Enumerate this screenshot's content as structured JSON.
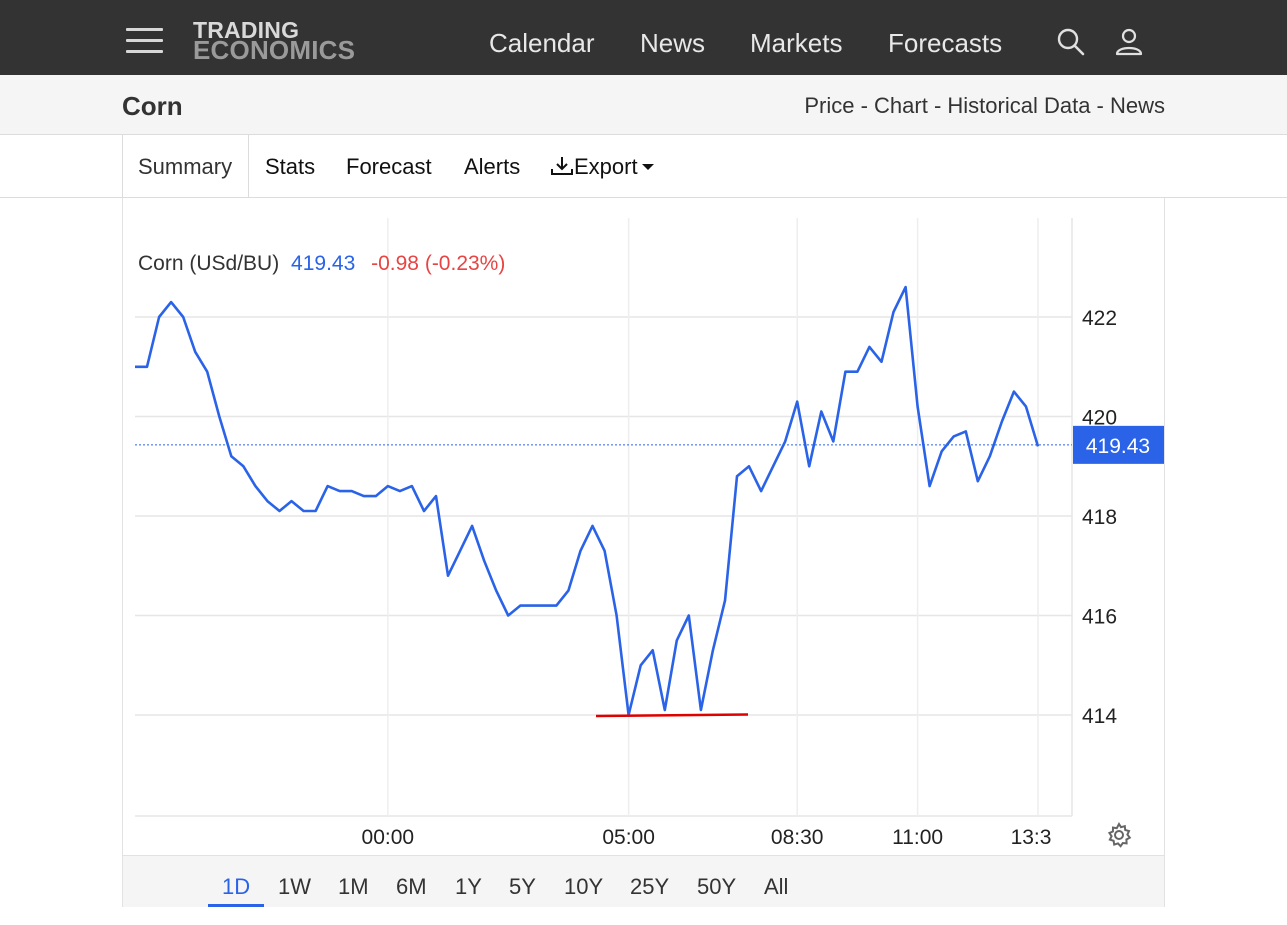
{
  "nav": {
    "logo_top": "TRADING",
    "logo_bottom": "ECONOMICS",
    "links": [
      "Calendar",
      "News",
      "Markets",
      "Forecasts"
    ]
  },
  "header": {
    "title": "Corn",
    "breadcrumbs": "Price - Chart - Historical Data - News"
  },
  "tabs": {
    "summary": "Summary",
    "stats": "Stats",
    "forecast": "Forecast",
    "alerts": "Alerts",
    "export": "Export"
  },
  "legend": {
    "name": "Corn (USd/BU)",
    "price": "419.43",
    "change": "-0.98 (-0.23%)"
  },
  "ranges": [
    "1D",
    "1W",
    "1M",
    "6M",
    "1Y",
    "5Y",
    "10Y",
    "25Y",
    "50Y",
    "All"
  ],
  "active_range": "1D",
  "colors": {
    "line": "#2a63e8",
    "down": "#e84444",
    "support_line": "#e00000",
    "nav_bg": "#333333"
  },
  "chart_data": {
    "type": "line",
    "series": [
      {
        "name": "Corn (USd/BU)",
        "x": [
          "18:45",
          "19:00",
          "19:15",
          "19:30",
          "19:45",
          "20:00",
          "20:15",
          "20:30",
          "20:45",
          "21:00",
          "21:15",
          "21:30",
          "21:45",
          "22:00",
          "22:15",
          "22:30",
          "22:45",
          "23:00",
          "23:15",
          "23:30",
          "23:45",
          "00:00",
          "00:15",
          "00:30",
          "00:45",
          "01:00",
          "01:15",
          "01:30",
          "01:45",
          "02:00",
          "02:15",
          "02:30",
          "02:45",
          "03:00",
          "03:15",
          "03:30",
          "03:45",
          "04:00",
          "04:15",
          "04:30",
          "04:45",
          "05:00",
          "05:15",
          "05:30",
          "05:45",
          "06:00",
          "06:15",
          "06:30",
          "06:45",
          "07:00",
          "07:15",
          "07:30",
          "07:45",
          "08:00",
          "08:15",
          "08:30",
          "08:45",
          "09:00",
          "09:15",
          "09:30",
          "09:45",
          "10:00",
          "10:15",
          "10:30",
          "10:45",
          "11:00",
          "11:15",
          "11:30",
          "11:45",
          "12:00",
          "12:15",
          "12:30",
          "12:45",
          "13:00",
          "13:15",
          "13:30"
        ],
        "values": [
          421.0,
          421.0,
          422.0,
          422.3,
          422.0,
          421.3,
          420.9,
          420.0,
          419.2,
          419.0,
          418.6,
          418.3,
          418.1,
          418.3,
          418.1,
          418.1,
          418.6,
          418.5,
          418.5,
          418.4,
          418.4,
          418.6,
          418.5,
          418.6,
          418.1,
          418.4,
          416.8,
          417.3,
          417.8,
          417.1,
          416.5,
          416.0,
          416.2,
          416.2,
          416.2,
          416.2,
          416.5,
          417.3,
          417.8,
          417.3,
          416.0,
          414.0,
          415.0,
          415.3,
          414.1,
          415.5,
          416.0,
          414.1,
          415.3,
          416.3,
          418.8,
          419.0,
          418.5,
          419.0,
          419.5,
          420.3,
          419.0,
          420.1,
          419.5,
          420.9,
          420.9,
          421.4,
          421.1,
          422.1,
          422.6,
          420.2,
          418.6,
          419.3,
          419.6,
          419.7,
          418.7,
          419.2,
          419.9,
          420.5,
          420.2,
          419.4
        ]
      }
    ],
    "last_price": 419.43,
    "change": -0.98,
    "change_pct": -0.23,
    "xticks": [
      "00:00",
      "05:00",
      "08:30",
      "11:00",
      "13:3"
    ],
    "yticks": [
      414,
      416,
      418,
      420,
      422
    ],
    "ylim": [
      412,
      424
    ],
    "support_level": 414,
    "grid": true
  }
}
